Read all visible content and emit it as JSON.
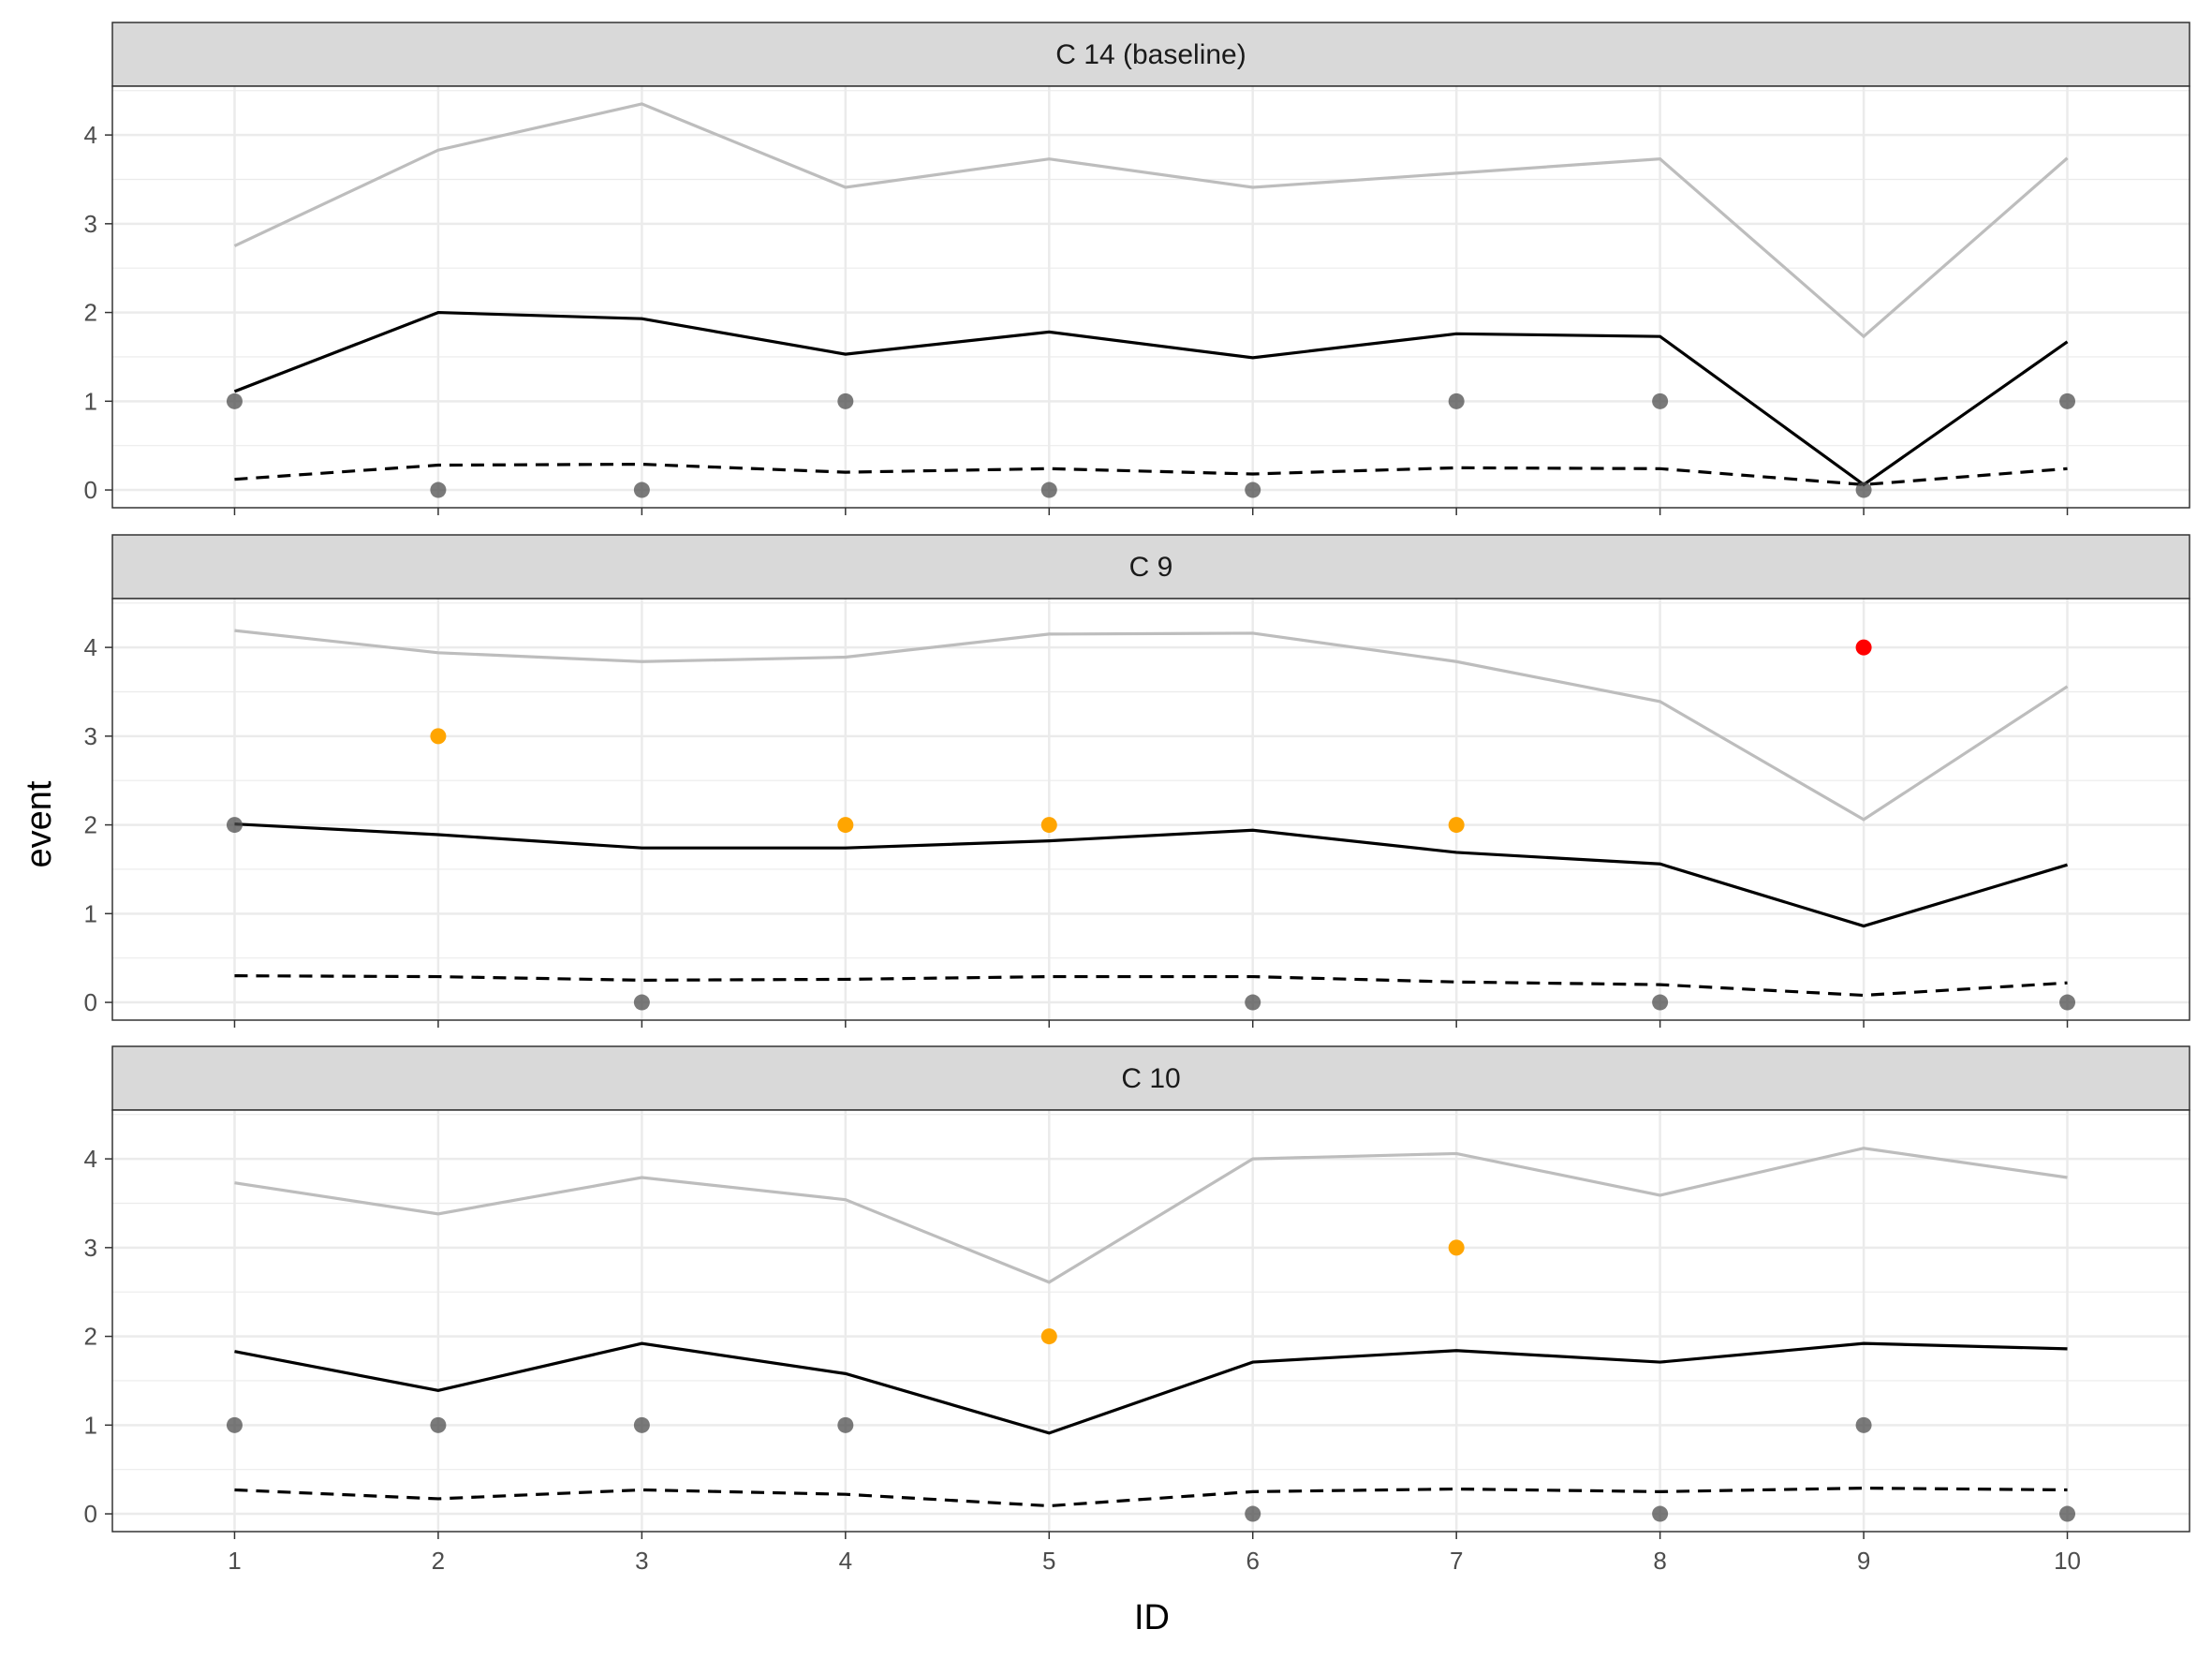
{
  "chart_data": {
    "type": "line",
    "xlabel": "ID",
    "ylabel": "event",
    "x": [
      1,
      2,
      3,
      4,
      5,
      6,
      7,
      8,
      9,
      10
    ],
    "xlim": [
      0.4,
      10.6
    ],
    "ylim": [
      -0.2,
      4.55
    ],
    "yticks": [
      0,
      1,
      2,
      3,
      4
    ],
    "grid": true,
    "legend": "none",
    "colors": {
      "upper": "#bdbdbd",
      "mean": "#000000",
      "lower": "#000000",
      "point_default": "#4d4d4d",
      "point_warning": "#FFA500",
      "point_alert": "#FF0000"
    },
    "panels": [
      {
        "label": "C 14 (baseline)",
        "upper": [
          2.75,
          3.83,
          4.35,
          3.41,
          3.73,
          3.41,
          3.57,
          3.73,
          1.73,
          3.74
        ],
        "mean": [
          1.11,
          2.0,
          1.93,
          1.53,
          1.78,
          1.49,
          1.76,
          1.73,
          0.06,
          1.67
        ],
        "lower": [
          0.12,
          0.28,
          0.29,
          0.2,
          0.24,
          0.18,
          0.25,
          0.24,
          0.06,
          0.24
        ],
        "events": [
          1,
          0,
          0,
          1,
          0,
          0,
          1,
          1,
          0,
          1
        ],
        "event_flags": [
          "normal",
          "normal",
          "normal",
          "normal",
          "normal",
          "normal",
          "normal",
          "normal",
          "normal",
          "normal"
        ]
      },
      {
        "label": "C 9",
        "upper": [
          4.19,
          3.94,
          3.84,
          3.89,
          4.15,
          4.16,
          3.84,
          3.39,
          2.06,
          3.56
        ],
        "mean": [
          2.01,
          1.89,
          1.74,
          1.74,
          1.82,
          1.94,
          1.69,
          1.56,
          0.86,
          1.55
        ],
        "lower": [
          0.3,
          0.29,
          0.25,
          0.26,
          0.29,
          0.29,
          0.23,
          0.2,
          0.08,
          0.22
        ],
        "events": [
          2,
          3,
          0,
          2,
          2,
          0,
          2,
          0,
          4,
          0
        ],
        "event_flags": [
          "normal",
          "warning",
          "normal",
          "warning",
          "warning",
          "normal",
          "warning",
          "normal",
          "alert",
          "normal"
        ]
      },
      {
        "label": "C 10",
        "upper": [
          3.73,
          3.38,
          3.79,
          3.54,
          2.61,
          4.0,
          4.06,
          3.59,
          4.12,
          3.79
        ],
        "mean": [
          1.83,
          1.39,
          1.92,
          1.58,
          0.91,
          1.71,
          1.84,
          1.71,
          1.92,
          1.86
        ],
        "lower": [
          0.27,
          0.17,
          0.27,
          0.22,
          0.09,
          0.25,
          0.28,
          0.25,
          0.29,
          0.27
        ],
        "events": [
          1,
          1,
          1,
          1,
          2,
          0,
          3,
          0,
          1,
          0
        ],
        "event_flags": [
          "normal",
          "normal",
          "normal",
          "normal",
          "warning",
          "normal",
          "warning",
          "normal",
          "normal",
          "normal"
        ]
      }
    ]
  }
}
